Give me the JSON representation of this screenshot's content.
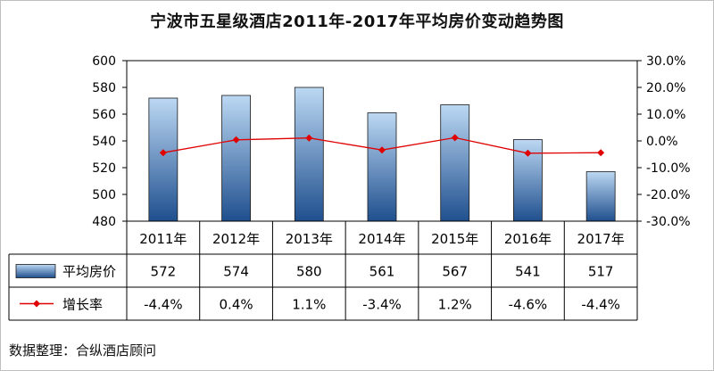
{
  "title": "宁波市五星级酒店2011年-2017年平均房价变动趋势图",
  "source_note": "数据整理：合纵酒店顾问",
  "chart_data": {
    "type": "bar",
    "title": "宁波市五星级酒店2011年-2017年平均房价变动趋势图",
    "categories": [
      "2011年",
      "2012年",
      "2013年",
      "2014年",
      "2015年",
      "2016年",
      "2017年"
    ],
    "series": [
      {
        "name": "平均房价",
        "type": "bar",
        "axis": "left",
        "values": [
          572,
          574,
          580,
          561,
          567,
          541,
          517
        ],
        "labels": [
          "572",
          "574",
          "580",
          "561",
          "567",
          "541",
          "517"
        ]
      },
      {
        "name": "增长率",
        "type": "line",
        "axis": "right",
        "values": [
          -4.4,
          0.4,
          1.1,
          -3.4,
          1.2,
          -4.6,
          -4.4
        ],
        "labels": [
          "-4.4%",
          "0.4%",
          "1.1%",
          "-3.4%",
          "1.2%",
          "-4.6%",
          "-4.4%"
        ]
      }
    ],
    "y_left": {
      "ticks": [
        "480",
        "500",
        "520",
        "540",
        "560",
        "580",
        "600"
      ],
      "range": [
        480,
        600
      ]
    },
    "y_right": {
      "ticks": [
        "-30.0%",
        "-20.0%",
        "-10.0%",
        "0.0%",
        "10.0%",
        "20.0%",
        "30.0%"
      ],
      "range": [
        -30,
        30
      ]
    },
    "data_table": true,
    "grid": false,
    "colors": {
      "bar_top": "#bcd8f3",
      "bar_bottom": "#1f4f8e",
      "line": "#e00000"
    }
  }
}
